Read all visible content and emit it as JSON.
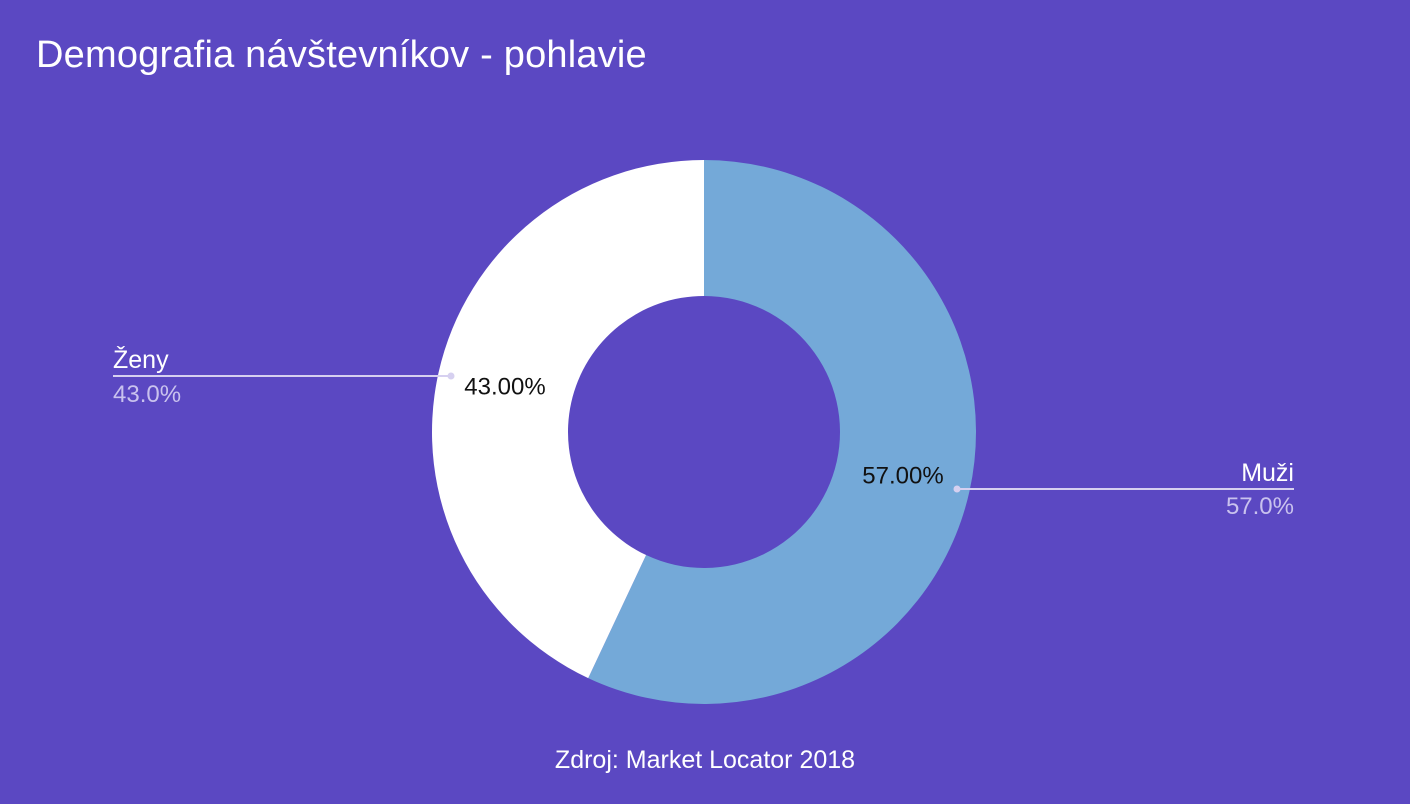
{
  "chart": {
    "title": "Demografia návštevníkov - pohlavie",
    "source": "Zdroj: Market Locator 2018"
  },
  "colors": {
    "background": "#5b48c2",
    "men": "#74a9d8",
    "women": "#ffffff",
    "leader_line": "#d6d0f0",
    "legend_value": "#c9c2ee",
    "slice_label": "#111111"
  },
  "chart_data": {
    "type": "pie",
    "donut": true,
    "title": "Demografia návštevníkov - pohlavie",
    "caption": "Zdroj: Market Locator 2018",
    "slices": [
      {
        "name": "Muži",
        "value": 57.0,
        "label": "57.00%",
        "legend_value": "57.0%",
        "color": "#74a9d8"
      },
      {
        "name": "Ženy",
        "value": 43.0,
        "label": "43.00%",
        "legend_value": "43.0%",
        "color": "#ffffff"
      }
    ],
    "legend": "outside-labels"
  }
}
